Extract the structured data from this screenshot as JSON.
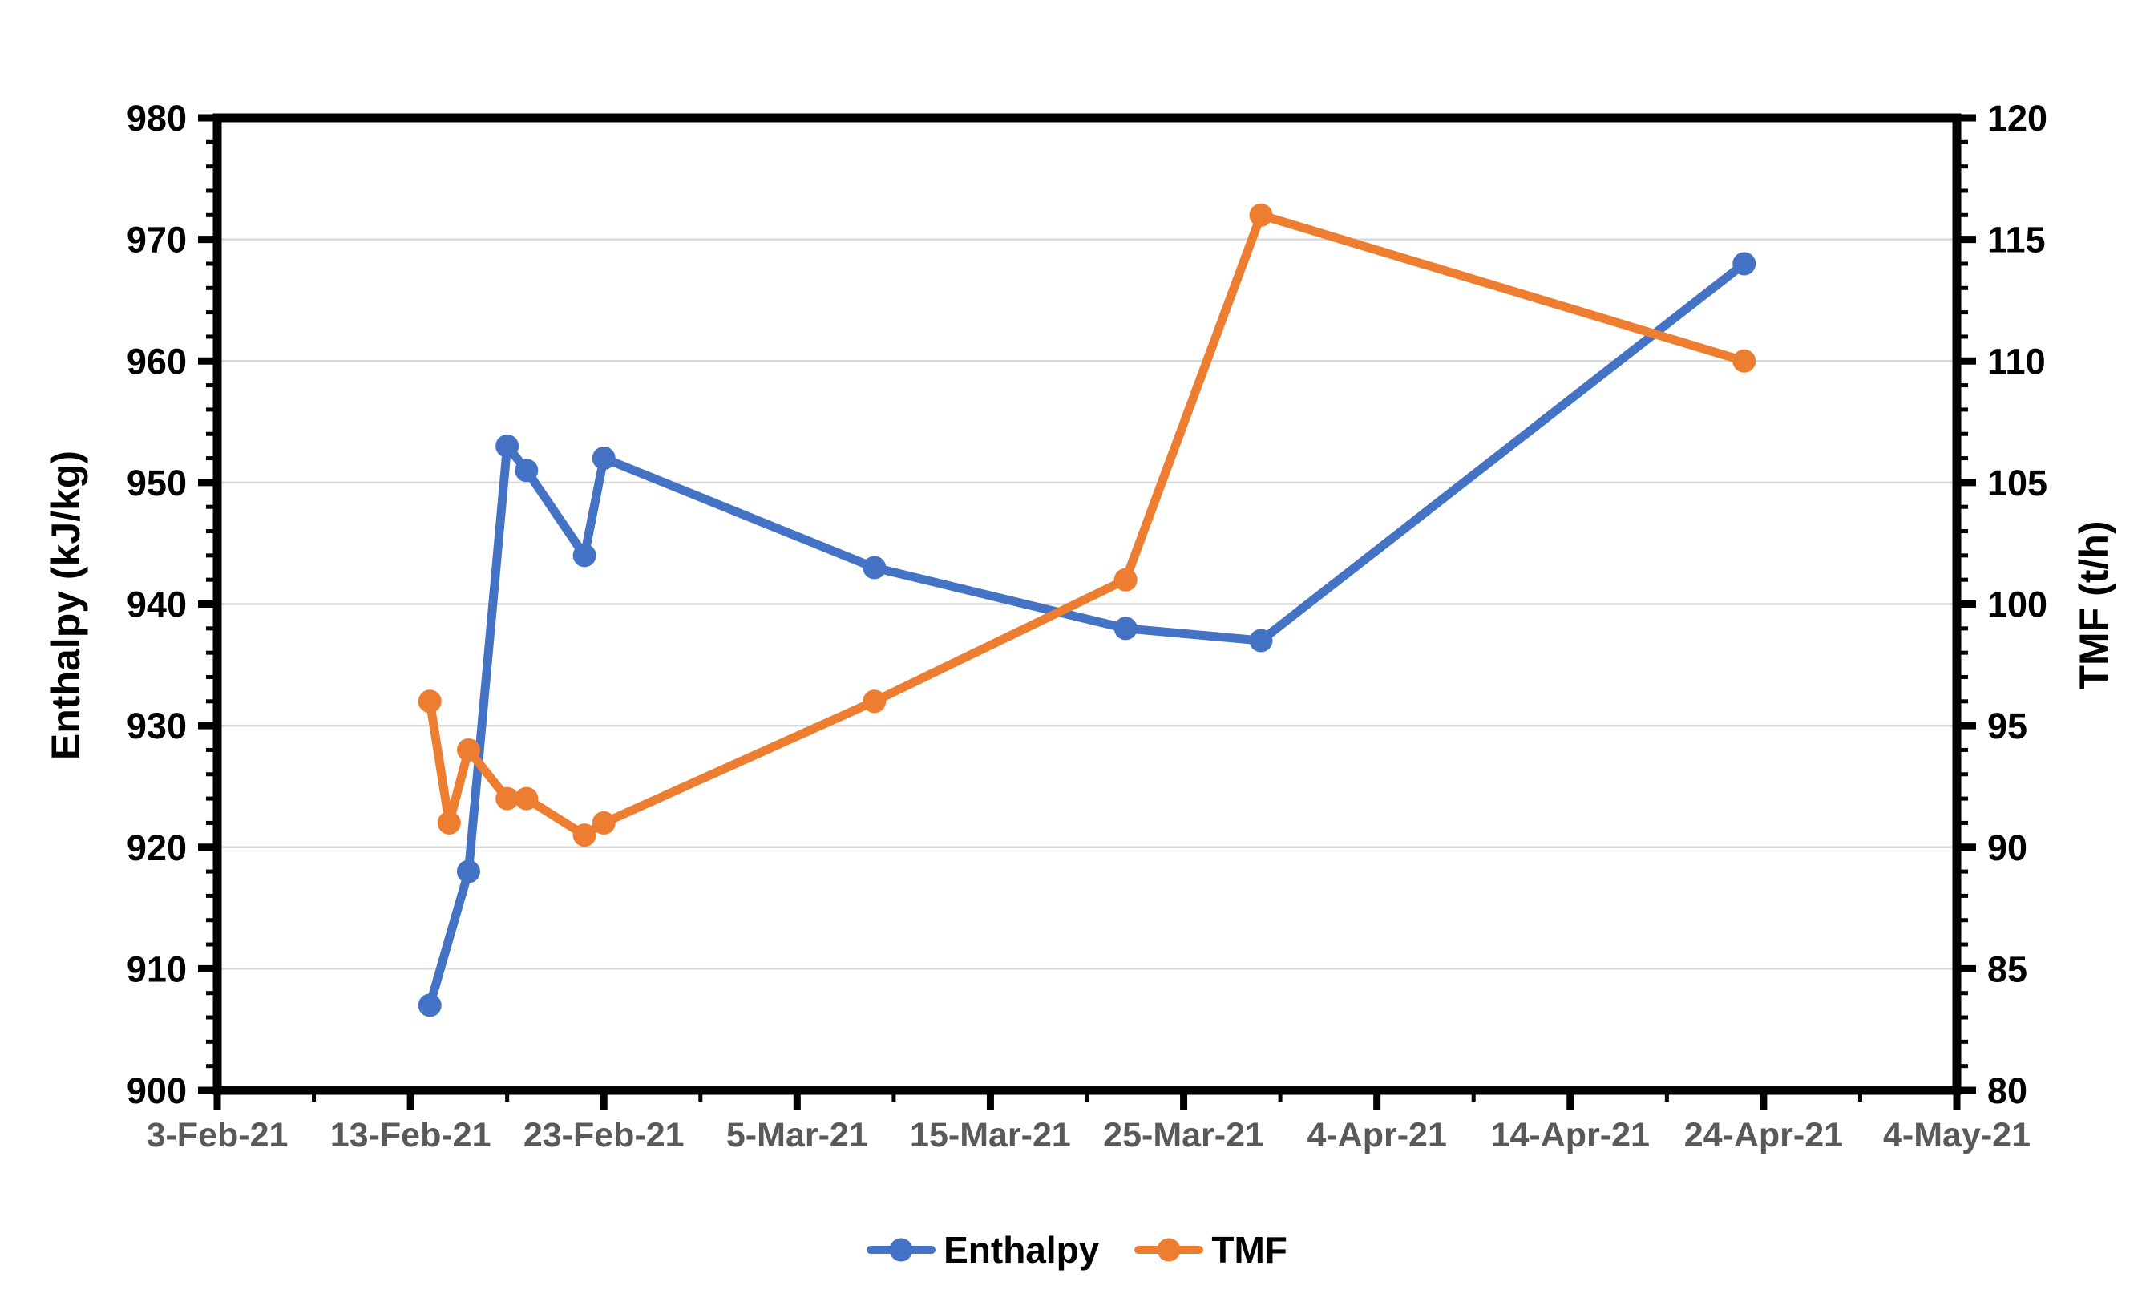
{
  "chart_data": {
    "type": "line",
    "title": "",
    "grid": {
      "horizontal": true,
      "vertical": false,
      "color": "#D9D9D9"
    },
    "plot_border_color": "#000000",
    "x_axis": {
      "label_color": "#595959",
      "range_days": [
        0,
        90
      ],
      "minor_tick_every_days": 5,
      "ticks": [
        {
          "day": 0,
          "label": "3-Feb-21"
        },
        {
          "day": 10,
          "label": "13-Feb-21"
        },
        {
          "day": 20,
          "label": "23-Feb-21"
        },
        {
          "day": 30,
          "label": "5-Mar-21"
        },
        {
          "day": 40,
          "label": "15-Mar-21"
        },
        {
          "day": 50,
          "label": "25-Mar-21"
        },
        {
          "day": 60,
          "label": "4-Apr-21"
        },
        {
          "day": 70,
          "label": "14-Apr-21"
        },
        {
          "day": 80,
          "label": "24-Apr-21"
        },
        {
          "day": 90,
          "label": "4-May-21"
        }
      ]
    },
    "left_axis": {
      "title": "Enthalpy (kJ/kg)",
      "min": 900,
      "max": 980,
      "major_step": 10,
      "minor_step": 2,
      "label_color": "#000000"
    },
    "right_axis": {
      "title": "TMF (t/h)",
      "min": 80,
      "max": 120,
      "major_step": 5,
      "minor_step": 1,
      "label_color": "#000000"
    },
    "series": [
      {
        "name": "Enthalpy",
        "axis": "left",
        "color": "#4472C4",
        "points": [
          {
            "date": "14-Feb-21",
            "day": 11,
            "value": 907
          },
          {
            "date": "16-Feb-21",
            "day": 13,
            "value": 918
          },
          {
            "date": "18-Feb-21",
            "day": 15,
            "value": 953
          },
          {
            "date": "19-Feb-21",
            "day": 16,
            "value": 951
          },
          {
            "date": "22-Feb-21",
            "day": 19,
            "value": 944
          },
          {
            "date": "23-Feb-21",
            "day": 20,
            "value": 952
          },
          {
            "date": "9-Mar-21",
            "day": 34,
            "value": 943
          },
          {
            "date": "22-Mar-21",
            "day": 47,
            "value": 938
          },
          {
            "date": "29-Mar-21",
            "day": 54,
            "value": 937
          },
          {
            "date": "23-Apr-21",
            "day": 79,
            "value": 968
          }
        ]
      },
      {
        "name": "TMF",
        "axis": "right",
        "color": "#ED7D31",
        "points": [
          {
            "date": "14-Feb-21",
            "day": 11,
            "value": 96
          },
          {
            "date": "15-Feb-21",
            "day": 12,
            "value": 91
          },
          {
            "date": "16-Feb-21",
            "day": 13,
            "value": 94
          },
          {
            "date": "18-Feb-21",
            "day": 15,
            "value": 92
          },
          {
            "date": "19-Feb-21",
            "day": 16,
            "value": 92
          },
          {
            "date": "22-Feb-21",
            "day": 19,
            "value": 90.5
          },
          {
            "date": "23-Feb-21",
            "day": 20,
            "value": 91
          },
          {
            "date": "9-Mar-21",
            "day": 34,
            "value": 96
          },
          {
            "date": "22-Mar-21",
            "day": 47,
            "value": 101
          },
          {
            "date": "29-Mar-21",
            "day": 54,
            "value": 116
          },
          {
            "date": "23-Apr-21",
            "day": 79,
            "value": 110
          }
        ]
      }
    ],
    "legend": {
      "position": "bottom",
      "items": [
        {
          "label": "Enthalpy",
          "color": "#4472C4"
        },
        {
          "label": "TMF",
          "color": "#ED7D31"
        }
      ]
    }
  }
}
